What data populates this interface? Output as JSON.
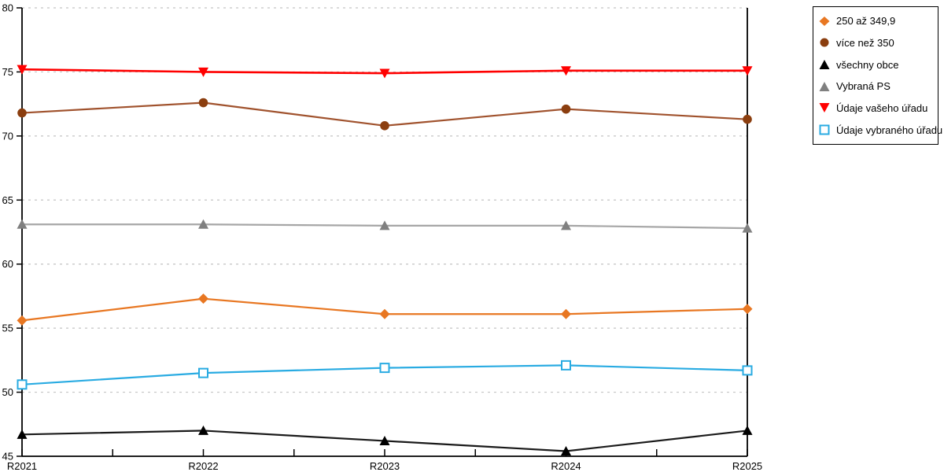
{
  "chart_data": {
    "type": "line",
    "title": "",
    "xlabel": "",
    "ylabel": "",
    "x_categories": [
      "R2021",
      "R2022",
      "R2023",
      "R2024",
      "R2025"
    ],
    "y_axis": {
      "min": 45,
      "max": 80,
      "step": 5,
      "tick_labels": [
        "45",
        "50",
        "55",
        "60",
        "65",
        "70",
        "75",
        "80"
      ]
    },
    "grid": "horizontal dashed light-gray",
    "legend_position": "outside top-right",
    "colors": {
      "grid_line": "#c4c4c4",
      "axis": "#000000",
      "background": "#ffffff"
    },
    "series": [
      {
        "name": "250 až 349,9",
        "marker": "diamond",
        "line_color": "#E87722",
        "marker_color": "#E87722",
        "values": [
          55.6,
          57.3,
          56.1,
          56.1,
          56.5
        ]
      },
      {
        "name": "více než 350",
        "marker": "circle",
        "line_color": "#A0522D",
        "marker_color": "#8B3E0F",
        "values": [
          71.8,
          72.6,
          70.8,
          72.1,
          71.3
        ]
      },
      {
        "name": "všechny obce",
        "marker": "triangle-up",
        "line_color": "#1a1a1a",
        "marker_color": "#000000",
        "values": [
          46.7,
          47.0,
          46.2,
          45.4,
          47.0
        ]
      },
      {
        "name": "Vybraná PS",
        "marker": "triangle-up",
        "line_color": "#a6a6a6",
        "marker_color": "#808080",
        "values": [
          63.1,
          63.1,
          63.0,
          63.0,
          62.8
        ]
      },
      {
        "name": "Údaje vašeho úřadu",
        "marker": "triangle-down",
        "line_color": "#FF0000",
        "marker_color": "#FF0000",
        "values": [
          75.2,
          75.0,
          74.9,
          75.1,
          75.1
        ]
      },
      {
        "name": "Údaje vybraného úřadu",
        "marker": "square-open",
        "line_color": "#29ABE2",
        "marker_color": "#29ABE2",
        "values": [
          50.6,
          51.5,
          51.9,
          52.1,
          51.7
        ]
      }
    ]
  }
}
